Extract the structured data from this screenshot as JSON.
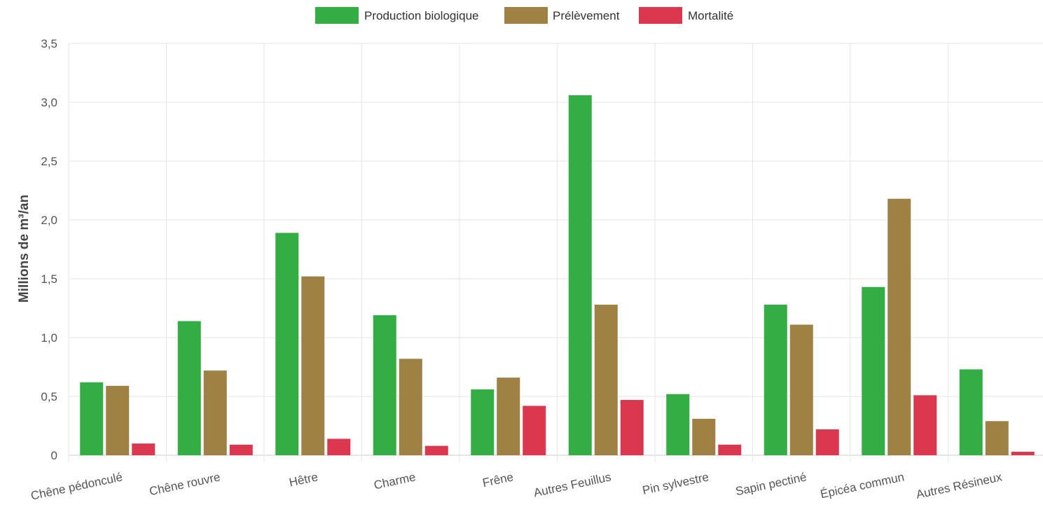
{
  "chart_data": {
    "type": "bar",
    "ylabel": "Millions de m³/an",
    "ylim": [
      0,
      3.5
    ],
    "yticks": [
      "0",
      "0,5",
      "1,0",
      "1,5",
      "2,0",
      "2,5",
      "3,0",
      "3,5"
    ],
    "categories": [
      "Chêne pédonculé",
      "Chêne rouvre",
      "Hêtre",
      "Charme",
      "Frêne",
      "Autres Feuillus",
      "Pin sylvestre",
      "Sapin pectiné",
      "Épicéa commun",
      "Autres Résineux"
    ],
    "series": [
      {
        "name": "Production biologique",
        "color": "#33ad44",
        "values": [
          0.62,
          1.14,
          1.89,
          1.19,
          0.56,
          3.06,
          0.52,
          1.28,
          1.43,
          0.73
        ]
      },
      {
        "name": "Prélèvement",
        "color": "#9e8145",
        "values": [
          0.59,
          0.72,
          1.52,
          0.82,
          0.66,
          1.28,
          0.31,
          1.11,
          2.18,
          0.29
        ]
      },
      {
        "name": "Mortalité",
        "color": "#d9384f",
        "values": [
          0.1,
          0.09,
          0.14,
          0.08,
          0.42,
          0.47,
          0.09,
          0.22,
          0.51,
          0.03
        ]
      }
    ],
    "grid": true,
    "legend_position": "top-center"
  }
}
